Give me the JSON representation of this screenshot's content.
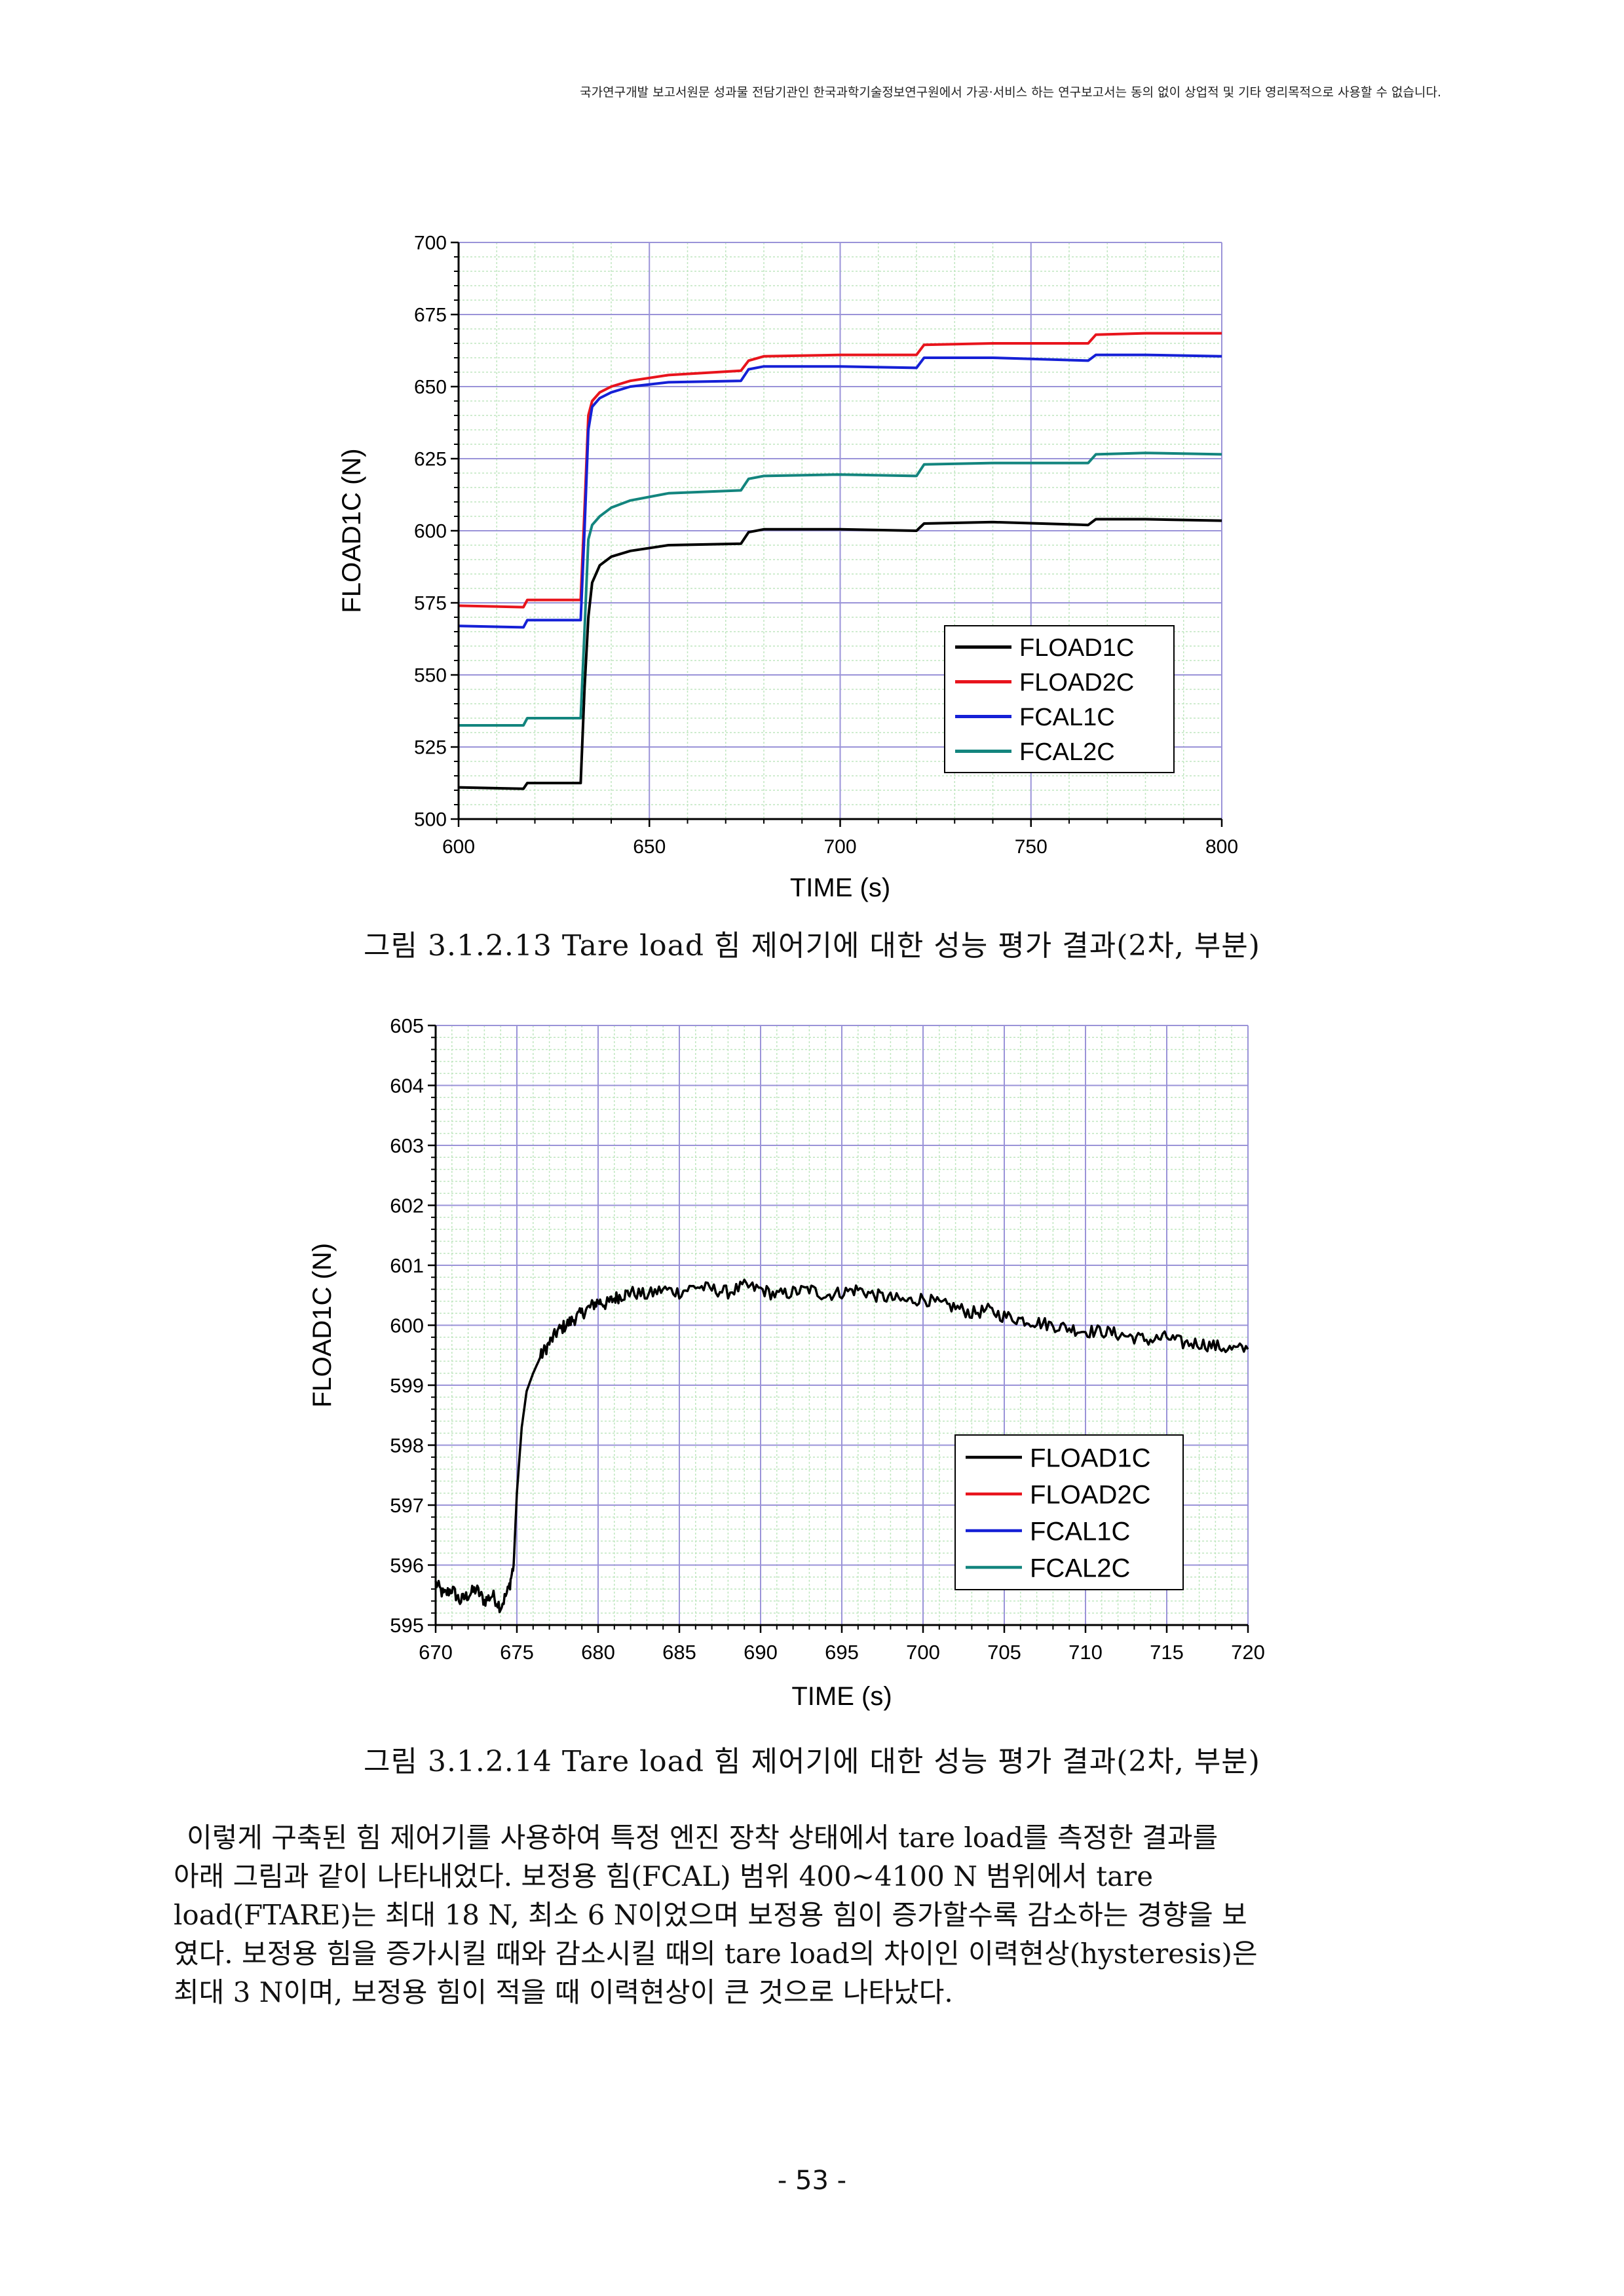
{
  "header": {
    "notice": "국가연구개발 보고서원문 성과물 전담기관인 한국과학기술정보연구원에서 가공·서비스 하는 연구보고서는 동의 없이 상업적 및 기타 영리목적으로 사용할 수 없습니다."
  },
  "figures": [
    {
      "caption": "그림 3.1.2.13 Tare load 힘 제어기에 대한 성능 평가 결과(2차, 부분)"
    },
    {
      "caption": "그림 3.1.2.14 Tare load 힘 제어기에 대한 성능 평가 결과(2차, 부분)"
    }
  ],
  "paragraph": {
    "lines": [
      "이렇게 구축된 힘 제어기를 사용하여 특정 엔진 장착 상태에서 tare load를 측정한 결과를",
      "아래 그림과 같이 나타내었다. 보정용 힘(FCAL) 범위 400~4100 N 범위에서 tare",
      "load(FTARE)는 최대 18 N, 최소 6 N이었으며 보정용 힘이 증가할수록 감소하는 경향을 보",
      "였다. 보정용 힘을 증가시킬 때와 감소시킬 때의 tare load의 차이인 이력현상(hysteresis)은",
      "최대 3 N이며, 보정용 힘이 적을 때 이력현상이 큰 것으로 나타났다."
    ]
  },
  "page_number": "- 53 -",
  "chart_data": [
    {
      "type": "line",
      "xlabel": "TIME (s)",
      "ylabel": "FLOAD1C (N)",
      "xlim": [
        600,
        800
      ],
      "ylim": [
        500,
        700
      ],
      "xticks": [
        600,
        650,
        700,
        750,
        800
      ],
      "yticks": [
        500,
        525,
        550,
        575,
        600,
        625,
        650,
        675,
        700
      ],
      "grid": true,
      "legend_position": "bottom-right",
      "series": [
        {
          "name": "FLOAD1C",
          "color": "#000000",
          "x": [
            600,
            617,
            618,
            632,
            633,
            634,
            635,
            637,
            640,
            645,
            655,
            674,
            676,
            680,
            700,
            720,
            722,
            740,
            765,
            767,
            780,
            800
          ],
          "y": [
            511,
            510.5,
            512.5,
            512.5,
            545,
            570,
            582,
            588,
            591,
            593,
            595,
            595.5,
            599.5,
            600.5,
            600.5,
            600,
            602.5,
            603,
            602,
            604,
            604,
            603.5
          ]
        },
        {
          "name": "FLOAD2C",
          "color": "#e8141c",
          "x": [
            600,
            617,
            618,
            632,
            633,
            634,
            635,
            637,
            640,
            645,
            655,
            674,
            676,
            680,
            700,
            720,
            722,
            740,
            765,
            767,
            780,
            800
          ],
          "y": [
            574,
            573.5,
            576,
            576,
            607,
            640,
            645,
            648,
            650,
            652,
            654,
            655.5,
            659,
            660.5,
            661,
            661,
            664.5,
            665,
            665,
            668,
            668.5,
            668.5
          ]
        },
        {
          "name": "FCAL1C",
          "color": "#1520d6",
          "x": [
            600,
            617,
            618,
            632,
            633,
            634,
            635,
            637,
            640,
            645,
            655,
            674,
            676,
            680,
            700,
            720,
            722,
            740,
            765,
            767,
            780,
            800
          ],
          "y": [
            567,
            566.5,
            569,
            569,
            600,
            635,
            643,
            646,
            648,
            650,
            651.5,
            652,
            656,
            657,
            657,
            656.5,
            660,
            660,
            659,
            661,
            661,
            660.5
          ]
        },
        {
          "name": "FCAL2C",
          "color": "#13857e",
          "x": [
            600,
            617,
            618,
            632,
            633,
            634,
            635,
            637,
            640,
            645,
            655,
            674,
            676,
            680,
            700,
            720,
            722,
            740,
            765,
            767,
            780,
            800
          ],
          "y": [
            532.5,
            532.5,
            535,
            535,
            565,
            597,
            602,
            605,
            608,
            610.5,
            613,
            614,
            618,
            619,
            619.5,
            619,
            623,
            623.5,
            623.5,
            626.5,
            627,
            626.5
          ]
        }
      ]
    },
    {
      "type": "line",
      "xlabel": "TIME (s)",
      "ylabel": "FLOAD1C (N)",
      "xlim": [
        670,
        720
      ],
      "ylim": [
        595,
        605
      ],
      "xticks": [
        670,
        675,
        680,
        685,
        690,
        695,
        700,
        705,
        710,
        715,
        720
      ],
      "yticks": [
        595,
        596,
        597,
        598,
        599,
        600,
        601,
        602,
        603,
        604,
        605
      ],
      "grid": true,
      "legend_position": "bottom-right",
      "legend": [
        {
          "name": "FLOAD1C",
          "color": "#000000"
        },
        {
          "name": "FLOAD2C",
          "color": "#e8141c"
        },
        {
          "name": "FCAL1C",
          "color": "#1520d6"
        },
        {
          "name": "FCAL2C",
          "color": "#13857e"
        }
      ],
      "series": [
        {
          "name": "FLOAD1C",
          "color": "#000000",
          "x": [
            670,
            670.5,
            671,
            671.5,
            672,
            672.5,
            673,
            673.5,
            674,
            674.5,
            674.8,
            675,
            675.3,
            675.6,
            676,
            676.5,
            677,
            677.5,
            678,
            678.5,
            679,
            679.5,
            680,
            680.5,
            681,
            681.5,
            682,
            683,
            684,
            685,
            686,
            687,
            688,
            689,
            690,
            691,
            692,
            693,
            694,
            695,
            696,
            697,
            698,
            699,
            700,
            701,
            702,
            703,
            704,
            705,
            706,
            707,
            708,
            709,
            710,
            711,
            712,
            713,
            714,
            715,
            716,
            717,
            718,
            719,
            720
          ],
          "y": [
            595.7,
            595.5,
            595.6,
            595.4,
            595.5,
            595.6,
            595.4,
            595.5,
            595.3,
            595.6,
            596,
            597.2,
            598.3,
            598.9,
            599.2,
            599.5,
            599.7,
            599.9,
            600,
            600.1,
            600.2,
            600.3,
            600.4,
            600.35,
            600.45,
            600.5,
            600.55,
            600.5,
            600.6,
            600.55,
            600.65,
            600.6,
            600.55,
            600.65,
            600.6,
            600.5,
            600.55,
            600.6,
            600.5,
            600.55,
            600.6,
            600.5,
            600.45,
            600.4,
            600.45,
            600.35,
            600.3,
            600.2,
            600.25,
            600.15,
            600.1,
            600.05,
            600.0,
            599.95,
            599.9,
            599.9,
            599.85,
            599.8,
            599.75,
            599.8,
            599.7,
            599.7,
            599.65,
            599.6,
            599.6
          ]
        }
      ]
    }
  ]
}
